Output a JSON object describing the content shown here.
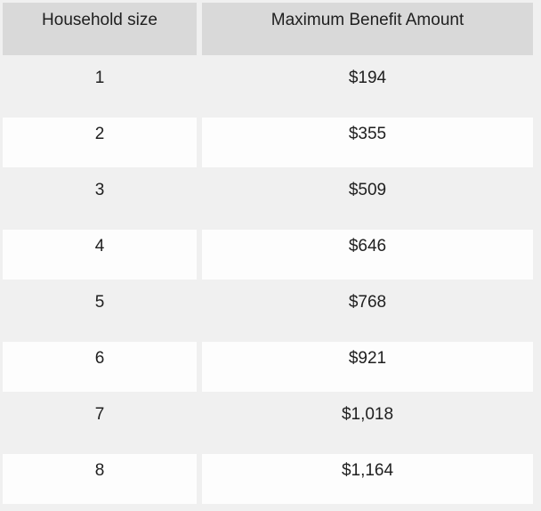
{
  "table": {
    "columns": [
      {
        "label": "Household size"
      },
      {
        "label": "Maximum Benefit Amount"
      }
    ],
    "rows": [
      {
        "household_size": "1",
        "max_benefit": "$194"
      },
      {
        "household_size": "2",
        "max_benefit": "$355"
      },
      {
        "household_size": "3",
        "max_benefit": "$509"
      },
      {
        "household_size": "4",
        "max_benefit": "$646"
      },
      {
        "household_size": "5",
        "max_benefit": "$768"
      },
      {
        "household_size": "6",
        "max_benefit": "$921"
      },
      {
        "household_size": "7",
        "max_benefit": "$1,018"
      },
      {
        "household_size": "8",
        "max_benefit": "$1,164"
      }
    ]
  },
  "colors": {
    "header_bg": "#d9d9d9",
    "row_odd_bg": "#f0f0f0",
    "row_even_bg": "#fdfdfd",
    "page_bg": "#f0f0f0",
    "text": "#202020"
  },
  "chart_data": {
    "type": "table",
    "title": "",
    "columns": [
      "Household size",
      "Maximum Benefit Amount"
    ],
    "rows": [
      [
        1,
        "$194"
      ],
      [
        2,
        "$355"
      ],
      [
        3,
        "$509"
      ],
      [
        4,
        "$646"
      ],
      [
        5,
        "$768"
      ],
      [
        6,
        "$921"
      ],
      [
        7,
        "$1,018"
      ],
      [
        8,
        "$1,164"
      ]
    ]
  }
}
